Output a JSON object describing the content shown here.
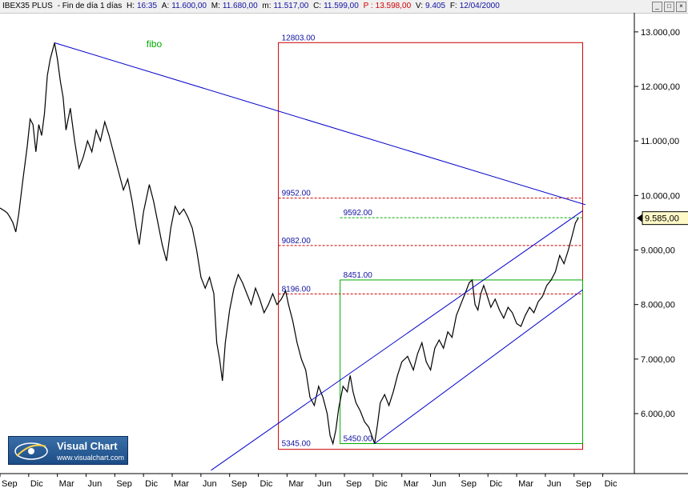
{
  "header": {
    "symbol": "IBEX35 PLUS",
    "period": "Fin de día 1 días",
    "hora_label": "H:",
    "hora": "16:35",
    "apertura_label": "A:",
    "apertura": "11.600,00",
    "maximo_label": "M:",
    "maximo": "11.680,00",
    "minimo_label": "m:",
    "minimo": "11.517,00",
    "cierre_label": "C:",
    "cierre": "11.599,00",
    "prev_label": "P :",
    "prev": "13.598,00",
    "volumen_label": "V:",
    "volumen": "9.405",
    "fecha_label": "F:",
    "fecha": "12/04/2000"
  },
  "logo": {
    "title": "Visual Chart",
    "url": "www.visualchart.com"
  },
  "colors": {
    "price": "#000000",
    "trendline": "#0000cc",
    "red": "#cc0000",
    "green": "#00aa00",
    "label_blue": "#1010a0",
    "last_price_bg": "#fff9c8"
  },
  "chart_data": {
    "type": "line",
    "title": "IBEX35 PLUS",
    "xlabel": "",
    "ylabel": "",
    "ylim": [
      4900,
      13350
    ],
    "y_ticks": [
      6000,
      7000,
      8000,
      9000,
      10000,
      11000,
      12000,
      13000
    ],
    "y_tick_labels": [
      "6.000,00",
      "7.000,00",
      "8.000,00",
      "9.000,00",
      "10.000,00",
      "11.000,00",
      "12.000,00",
      "13.000,00"
    ],
    "x_tick_labels": [
      "Sep",
      "Dic",
      "Mar",
      "Jun",
      "Sep",
      "Dic",
      "Mar",
      "Jun",
      "Sep",
      "Dic",
      "Mar",
      "Jun",
      "Sep",
      "Dic",
      "Mar",
      "Jun",
      "Sep",
      "Dic",
      "Mar",
      "Jun",
      "Sep",
      "Dic"
    ],
    "x_range": [
      0,
      22.1
    ],
    "grid": false,
    "last_price": 9585,
    "last_price_label": "9.585,00",
    "series": [
      {
        "points": [
          [
            0.0,
            9770
          ],
          [
            0.15,
            9720
          ],
          [
            0.25,
            9680
          ],
          [
            0.35,
            9600
          ],
          [
            0.45,
            9500
          ],
          [
            0.55,
            9330
          ],
          [
            0.65,
            9650
          ],
          [
            0.8,
            10300
          ],
          [
            0.95,
            10900
          ],
          [
            1.05,
            11400
          ],
          [
            1.15,
            11300
          ],
          [
            1.25,
            10800
          ],
          [
            1.35,
            11300
          ],
          [
            1.45,
            11100
          ],
          [
            1.55,
            11500
          ],
          [
            1.65,
            12200
          ],
          [
            1.75,
            12500
          ],
          [
            1.85,
            12700
          ],
          [
            1.9,
            12800
          ],
          [
            2.0,
            12500
          ],
          [
            2.1,
            12100
          ],
          [
            2.2,
            11800
          ],
          [
            2.3,
            11200
          ],
          [
            2.45,
            11600
          ],
          [
            2.6,
            11000
          ],
          [
            2.75,
            10500
          ],
          [
            2.9,
            10700
          ],
          [
            3.05,
            11000
          ],
          [
            3.2,
            10800
          ],
          [
            3.35,
            11200
          ],
          [
            3.5,
            11000
          ],
          [
            3.65,
            11350
          ],
          [
            3.8,
            11100
          ],
          [
            4.0,
            10700
          ],
          [
            4.15,
            10400
          ],
          [
            4.3,
            10100
          ],
          [
            4.45,
            10300
          ],
          [
            4.6,
            9900
          ],
          [
            4.75,
            9400
          ],
          [
            4.85,
            9100
          ],
          [
            5.0,
            9700
          ],
          [
            5.2,
            10200
          ],
          [
            5.35,
            9900
          ],
          [
            5.5,
            9500
          ],
          [
            5.65,
            9100
          ],
          [
            5.8,
            8800
          ],
          [
            5.95,
            9400
          ],
          [
            6.1,
            9800
          ],
          [
            6.25,
            9650
          ],
          [
            6.4,
            9750
          ],
          [
            6.55,
            9600
          ],
          [
            6.7,
            9400
          ],
          [
            6.85,
            9000
          ],
          [
            7.0,
            8500
          ],
          [
            7.15,
            8300
          ],
          [
            7.3,
            8500
          ],
          [
            7.45,
            8200
          ],
          [
            7.55,
            7300
          ],
          [
            7.65,
            7000
          ],
          [
            7.75,
            6600
          ],
          [
            7.85,
            7300
          ],
          [
            8.0,
            7900
          ],
          [
            8.15,
            8300
          ],
          [
            8.3,
            8550
          ],
          [
            8.45,
            8400
          ],
          [
            8.6,
            8200
          ],
          [
            8.75,
            8000
          ],
          [
            8.9,
            8300
          ],
          [
            9.05,
            8100
          ],
          [
            9.2,
            7850
          ],
          [
            9.35,
            8000
          ],
          [
            9.5,
            8200
          ],
          [
            9.65,
            8000
          ],
          [
            9.8,
            8100
          ],
          [
            9.95,
            8250
          ],
          [
            10.05,
            8000
          ],
          [
            10.2,
            7700
          ],
          [
            10.35,
            7300
          ],
          [
            10.5,
            7000
          ],
          [
            10.65,
            6800
          ],
          [
            10.8,
            6300
          ],
          [
            10.95,
            6150
          ],
          [
            11.1,
            6500
          ],
          [
            11.25,
            6300
          ],
          [
            11.4,
            6000
          ],
          [
            11.5,
            5600
          ],
          [
            11.6,
            5450
          ],
          [
            11.7,
            5700
          ],
          [
            11.8,
            6100
          ],
          [
            11.95,
            6500
          ],
          [
            12.1,
            6400
          ],
          [
            12.2,
            6700
          ],
          [
            12.3,
            6400
          ],
          [
            12.4,
            6200
          ],
          [
            12.55,
            6050
          ],
          [
            12.7,
            5850
          ],
          [
            12.85,
            5750
          ],
          [
            12.95,
            5600
          ],
          [
            13.05,
            5450
          ],
          [
            13.15,
            5800
          ],
          [
            13.25,
            6200
          ],
          [
            13.4,
            6350
          ],
          [
            13.55,
            6150
          ],
          [
            13.7,
            6400
          ],
          [
            13.85,
            6700
          ],
          [
            14.0,
            6950
          ],
          [
            14.2,
            7050
          ],
          [
            14.4,
            6800
          ],
          [
            14.55,
            7100
          ],
          [
            14.7,
            7300
          ],
          [
            14.85,
            6950
          ],
          [
            15.0,
            6800
          ],
          [
            15.15,
            7200
          ],
          [
            15.3,
            7350
          ],
          [
            15.45,
            7200
          ],
          [
            15.6,
            7500
          ],
          [
            15.75,
            7400
          ],
          [
            15.9,
            7800
          ],
          [
            16.05,
            8000
          ],
          [
            16.2,
            8200
          ],
          [
            16.35,
            8400
          ],
          [
            16.45,
            8450
          ],
          [
            16.55,
            8000
          ],
          [
            16.65,
            7900
          ],
          [
            16.75,
            8200
          ],
          [
            16.85,
            8350
          ],
          [
            16.95,
            8200
          ],
          [
            17.1,
            7950
          ],
          [
            17.25,
            8100
          ],
          [
            17.4,
            7900
          ],
          [
            17.55,
            7750
          ],
          [
            17.7,
            7950
          ],
          [
            17.85,
            7850
          ],
          [
            18.0,
            7650
          ],
          [
            18.15,
            7600
          ],
          [
            18.3,
            7800
          ],
          [
            18.45,
            7950
          ],
          [
            18.6,
            7850
          ],
          [
            18.75,
            8050
          ],
          [
            18.9,
            8150
          ],
          [
            19.05,
            8350
          ],
          [
            19.2,
            8450
          ],
          [
            19.35,
            8600
          ],
          [
            19.5,
            8900
          ],
          [
            19.65,
            8750
          ],
          [
            19.8,
            9000
          ],
          [
            19.95,
            9300
          ],
          [
            20.05,
            9500
          ],
          [
            20.15,
            9585
          ]
        ]
      }
    ],
    "trendlines": [
      {
        "name": "fibo",
        "from": [
          1.9,
          12800
        ],
        "to": [
          20.4,
          9830
        ]
      },
      {
        "from": [
          7.35,
          4960
        ],
        "to": [
          20.3,
          9720
        ]
      },
      {
        "from": [
          13.05,
          5450
        ],
        "to": [
          20.3,
          8270
        ]
      }
    ],
    "fib_red": {
      "box": {
        "x0": 9.7,
        "x1": 20.3,
        "y0": 5345,
        "y1": 12803
      },
      "levels": [
        {
          "value": 12803,
          "label": "12803.00"
        },
        {
          "value": 9952,
          "label": "9952.00"
        },
        {
          "value": 9082,
          "label": "9082.00"
        },
        {
          "value": 8196,
          "label": "8196.00"
        },
        {
          "value": 5345,
          "label": "5345.00"
        }
      ]
    },
    "fib_green": {
      "box": {
        "x0": 11.85,
        "x1": 20.3,
        "y0": 5450,
        "y1": 8451
      },
      "levels": [
        {
          "value": 9592,
          "label": "9592.00"
        },
        {
          "value": 8451,
          "label": "8451.00"
        },
        {
          "value": 5450,
          "label": "5450.00"
        }
      ]
    }
  }
}
